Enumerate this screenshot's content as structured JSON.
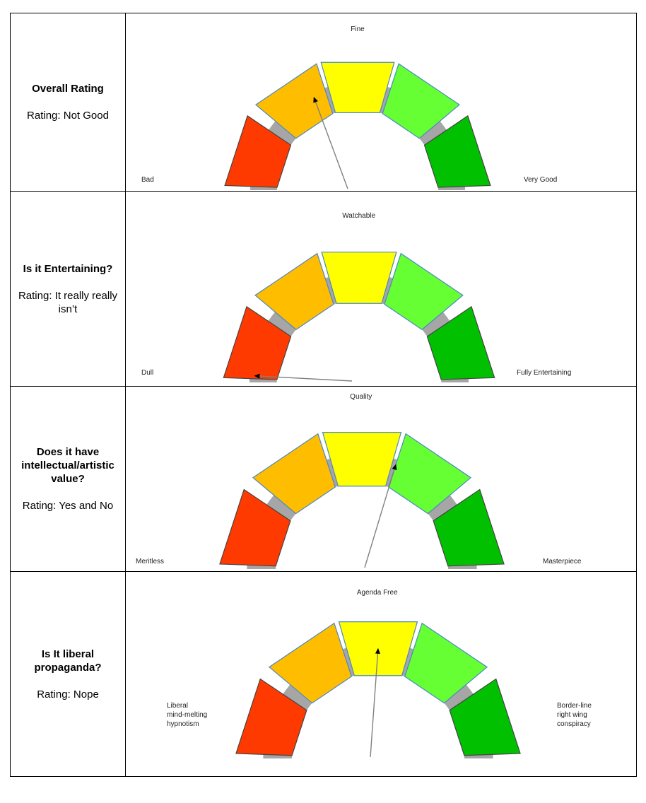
{
  "chart_data": [
    {
      "type": "gauge",
      "question": "Overall Rating",
      "rating_prefix": "Rating:",
      "rating": "Not Good",
      "categories": [
        "Bad",
        "",
        "Fine",
        "",
        "Very Good"
      ],
      "needle": {
        "value": 0.36,
        "range": [
          0,
          1
        ]
      }
    },
    {
      "type": "gauge",
      "question": "Is it Entertaining?",
      "rating_prefix": "Rating:",
      "rating": "It really really isn’t",
      "categories": [
        "Dull",
        "",
        "Watchable",
        "",
        "Fully Entertaining"
      ],
      "needle": {
        "value": 0.02,
        "range": [
          0,
          1
        ]
      }
    },
    {
      "type": "gauge",
      "question": "Does it have intellectual/artistic value?",
      "rating_prefix": "Rating:",
      "rating": "Yes and No",
      "categories": [
        "Meritless",
        "",
        "Quality",
        "",
        "Masterpiece"
      ],
      "needle": {
        "value": 0.6,
        "range": [
          0,
          1
        ]
      }
    },
    {
      "type": "gauge",
      "question": "Is It liberal propaganda?",
      "rating_prefix": "Rating:",
      "rating": "Nope",
      "categories": [
        "Liberal mind-melting hypnotism",
        "",
        "Agenda Free",
        "",
        "Border-line right wing conspiracy"
      ],
      "needle": {
        "value": 0.5,
        "range": [
          0,
          1
        ]
      }
    }
  ],
  "colors": {
    "segments": [
      "#ff3a00",
      "#ffbd00",
      "#ffff00",
      "#66ff33",
      "#00c000"
    ],
    "segment_outline": "#4b88c4",
    "track": "#a6a6a6",
    "needle": "#808080",
    "arrowhead": "#000000"
  }
}
